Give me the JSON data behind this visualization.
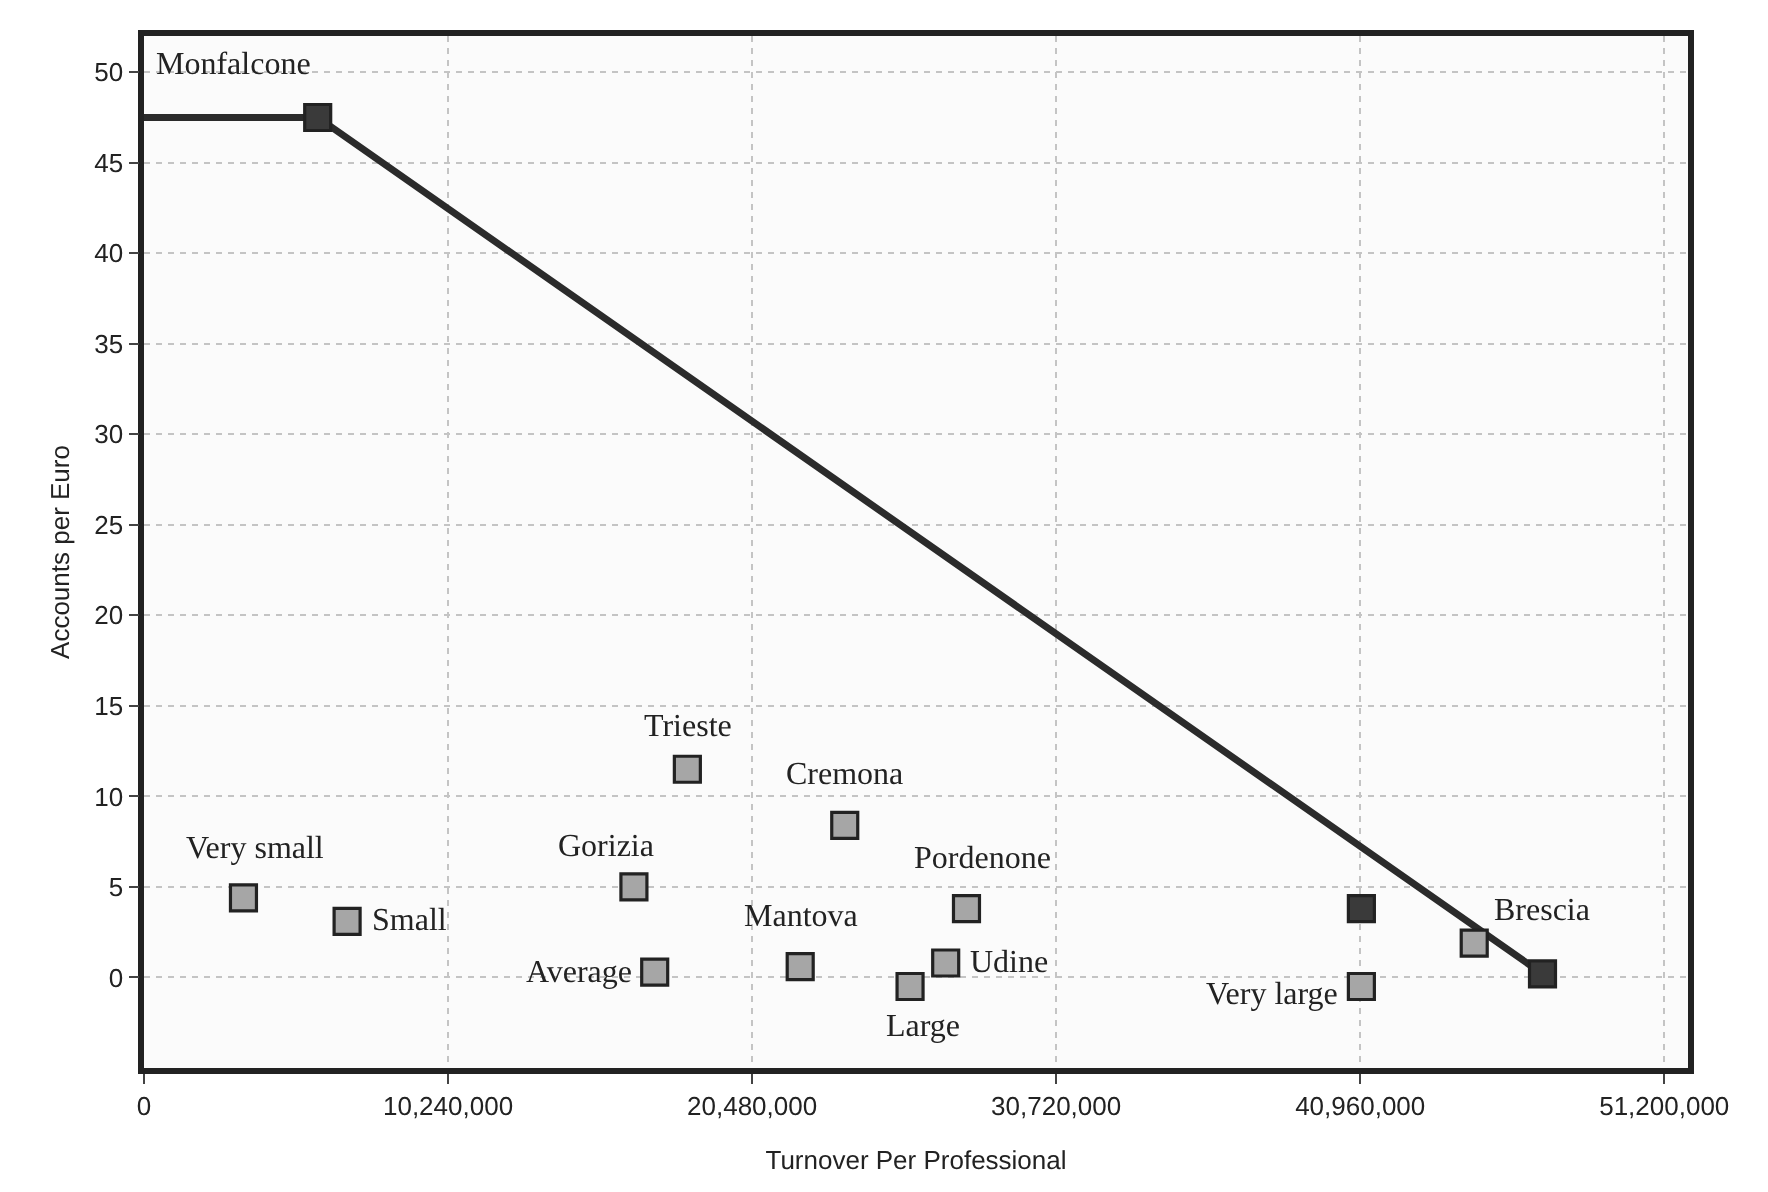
{
  "chart_data": {
    "type": "scatter",
    "xlabel": "Turnover Per Professional",
    "ylabel": "Accounts per Euro",
    "xlim": [
      0,
      52000000
    ],
    "ylim": [
      -5,
      52
    ],
    "xticks": [
      0,
      {
        "value": 10240000,
        "label": "10,240,000"
      },
      {
        "value": 20480000,
        "label": "20,480,000"
      },
      {
        "value": 30720000,
        "label": "30,720,000"
      },
      {
        "value": 40960000,
        "label": "40,960,000"
      },
      {
        "value": 51200000,
        "label": "51,200,000"
      }
    ],
    "yticks": [
      0,
      5,
      10,
      15,
      20,
      25,
      30,
      35,
      40,
      45,
      50
    ],
    "grid": true,
    "series": [
      {
        "type": "line",
        "color": "#2b2b2b",
        "marker": "none",
        "line_style": "solid",
        "x": [
          0,
          5850000,
          47100000
        ],
        "values": [
          47.5,
          47.5,
          0.2
        ]
      },
      {
        "marker": "square",
        "x": [
          5850000,
          3350000,
          6840000,
          16500000,
          18300000,
          17200000,
          22100000,
          23600000,
          25800000,
          27000000,
          27700000,
          41000000,
          41000000,
          44800000,
          47100000
        ],
        "values": [
          47.5,
          4.4,
          3.1,
          5.0,
          11.5,
          0.3,
          0.6,
          8.4,
          -0.5,
          0.8,
          3.8,
          3.8,
          -0.5,
          1.9,
          0.2
        ],
        "colors": [
          "#3a3a3a",
          "#a6a6a6",
          "#a6a6a6",
          "#a6a6a6",
          "#a6a6a6",
          "#a6a6a6",
          "#a6a6a6",
          "#a6a6a6",
          "#a6a6a6",
          "#a6a6a6",
          "#a6a6a6",
          "#3a3a3a",
          "#a6a6a6",
          "#a6a6a6",
          "#3a3a3a"
        ]
      }
    ],
    "annotations": [
      {
        "text": "Monfalcone",
        "x": 5850000,
        "y": 47.5
      },
      {
        "text": "Very small",
        "x": 3350000,
        "y": 4.4
      },
      {
        "text": "Small",
        "x": 6840000,
        "y": 3.1
      },
      {
        "text": "Gorizia",
        "x": 16500000,
        "y": 5.0
      },
      {
        "text": "Trieste",
        "x": 18300000,
        "y": 11.5
      },
      {
        "text": "Average",
        "x": 17200000,
        "y": 0.3
      },
      {
        "text": "Mantova",
        "x": 22100000,
        "y": 0.6
      },
      {
        "text": "Cremona",
        "x": 23600000,
        "y": 8.4
      },
      {
        "text": "Large",
        "x": 25800000,
        "y": -0.5
      },
      {
        "text": "Udine",
        "x": 27000000,
        "y": 0.8
      },
      {
        "text": "Pordenone",
        "x": 27700000,
        "y": 3.8
      },
      {
        "text": "Very large",
        "x": 41000000,
        "y": -0.5
      },
      {
        "text": "Brescia",
        "x": 44800000,
        "y": 1.9
      }
    ]
  }
}
